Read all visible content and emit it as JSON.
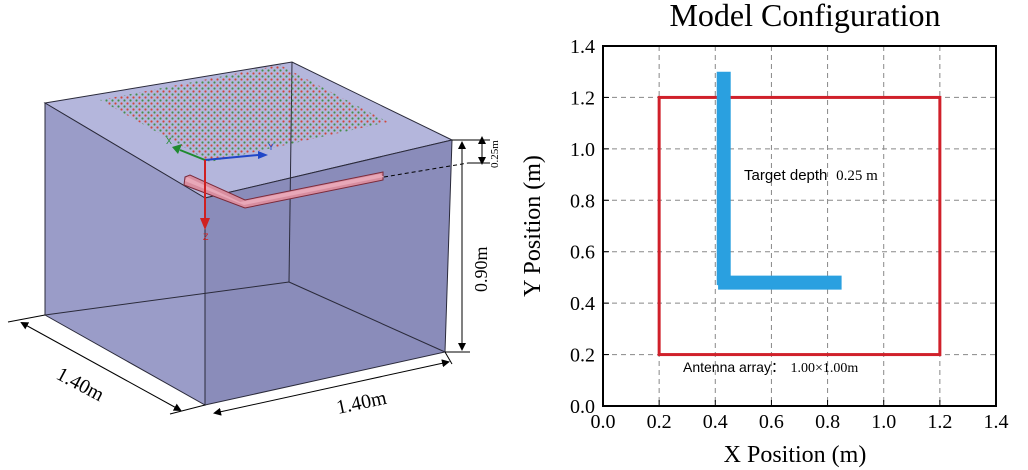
{
  "colors": {
    "box_face_front": "#9a9cc8",
    "box_face_side": "#8a8cba",
    "box_face_top": "#b4b6dc",
    "box_edge": "#2a2a3a",
    "array_dots_red": "#d23a2a",
    "array_dots_green": "#3a8a3a",
    "target_fill": "#d88ea0",
    "target_edge": "#7a2a3a",
    "axis_x_green": "#1f8a2f",
    "axis_y_blue": "#2046c8",
    "axis_z_red": "#d02020",
    "plot_red_box": "#d0202a",
    "plot_blue_target": "#2aa0e0",
    "grid": "#888888"
  },
  "model3d": {
    "depth_label": "0.25m",
    "height_label": "0.90m",
    "width_label_left": "1.40m",
    "width_label_right": "1.40m",
    "axis_x_label": "X",
    "axis_y_label": "Y",
    "axis_z_label": "Z",
    "icons": {
      "axis_triad": "axis-triad-icon",
      "antenna_array": "antenna-array-dots",
      "target": "l-shaped-target"
    }
  },
  "chart_data": {
    "type": "scatter",
    "title": "Model Configuration",
    "xlabel": "X Position (m)",
    "ylabel": "Y Position (m)",
    "xlim": [
      0.0,
      1.4
    ],
    "ylim": [
      0.0,
      1.4
    ],
    "xticks": [
      0.0,
      0.2,
      0.4,
      0.6,
      0.8,
      1.0,
      1.2,
      1.4
    ],
    "yticks": [
      0.0,
      0.2,
      0.4,
      0.6,
      0.8,
      1.0,
      1.2,
      1.4
    ],
    "xtick_labels": [
      "0.0",
      "0.2",
      "0.4",
      "0.6",
      "0.8",
      "1.0",
      "1.2",
      "1.4"
    ],
    "ytick_labels": [
      "0.0",
      "0.2",
      "0.4",
      "0.6",
      "0.8",
      "1.0",
      "1.2",
      "1.4"
    ],
    "grid": true,
    "antenna_array_box": {
      "x0": 0.2,
      "y0": 0.2,
      "x1": 1.2,
      "y1": 1.2
    },
    "target_L": {
      "vertical": {
        "x": 0.43,
        "y0": 0.47,
        "y1": 1.3
      },
      "horizontal": {
        "x0": 0.41,
        "x1": 0.85,
        "y": 0.48
      }
    },
    "annotations": {
      "target_label": "Target depth",
      "target_value": "0.25 m",
      "array_label": "Antenna array：",
      "array_value": "1.00×1.00m"
    }
  }
}
